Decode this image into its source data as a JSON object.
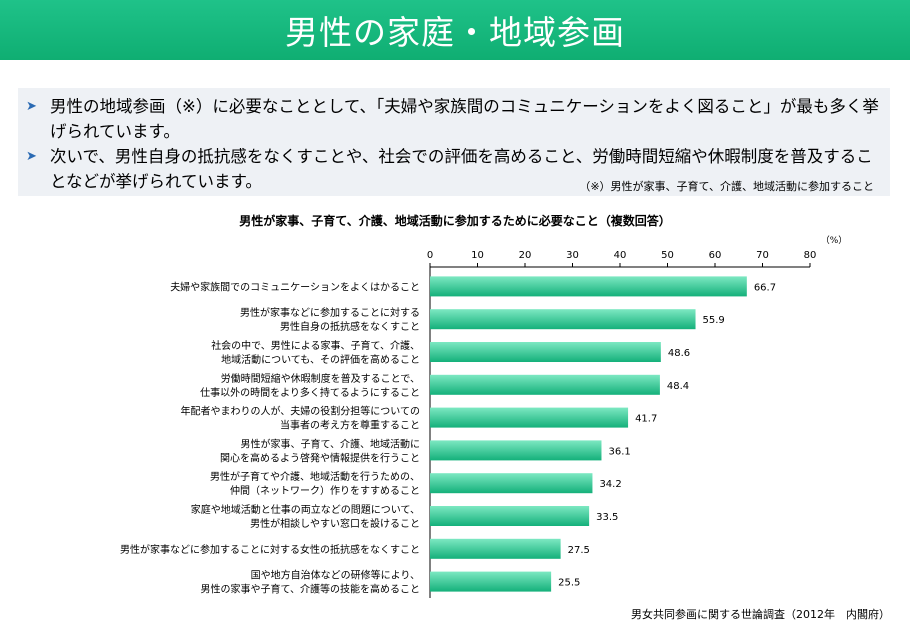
{
  "header": {
    "title": "男性の家庭・地域参画"
  },
  "summary": {
    "bullets": [
      "男性の地域参画（※）に必要なこととして、「夫婦や家族間のコミュニケーションをよく図ること」が最も多く挙げられています。",
      "次いで、男性自身の抵抗感をなくすことや、社会での評価を高めること、労働時間短縮や休暇制度を普及することなどが挙げられています。"
    ],
    "bullet_icon": "chevron-right-icon",
    "note": "（※）男性が家事、子育て、介護、地域活動に参加すること"
  },
  "colors": {
    "header": "#13b77b",
    "bar_top": "#7de8c2",
    "bar_bottom": "#14b07a",
    "bullet": "#2a6ab3"
  },
  "source": "男女共同参画に関する世論調査（2012年　内閣府）",
  "chart_data": {
    "type": "bar",
    "orientation": "horizontal",
    "title": "男性が家事、子育て、介護、地域活動に参加するために必要なこと（複数回答）",
    "unit": "（%）",
    "xlim": [
      0,
      80
    ],
    "ticks": [
      0,
      10,
      20,
      30,
      40,
      50,
      60,
      70,
      80
    ],
    "grid": false,
    "categories": [
      [
        "夫婦や家族間でのコミュニケーションをよくはかること"
      ],
      [
        "男性が家事などに参加することに対する",
        "男性自身の抵抗感をなくすこと"
      ],
      [
        "社会の中で、男性による家事、子育て、介護、",
        "地域活動についても、その評価を高めること"
      ],
      [
        "労働時間短縮や休暇制度を普及することで、",
        "仕事以外の時間をより多く持てるようにすること"
      ],
      [
        "年配者やまわりの人が、夫婦の役割分担等についての",
        "当事者の考え方を尊重すること"
      ],
      [
        "男性が家事、子育て、介護、地域活動に",
        "関心を高めるよう啓発や情報提供を行うこと"
      ],
      [
        "男性が子育てや介護、地域活動を行うための、",
        "仲間（ネットワーク）作りをすすめること"
      ],
      [
        "家庭や地域活動と仕事の両立などの問題について、",
        "男性が相談しやすい窓口を設けること"
      ],
      [
        "男性が家事などに参加することに対する女性の抵抗感をなくすこと"
      ],
      [
        "国や地方自治体などの研修等により、",
        "男性の家事や子育て、介護等の技能を高めること"
      ]
    ],
    "values": [
      66.7,
      55.9,
      48.6,
      48.4,
      41.7,
      36.1,
      34.2,
      33.5,
      27.5,
      25.5
    ]
  }
}
